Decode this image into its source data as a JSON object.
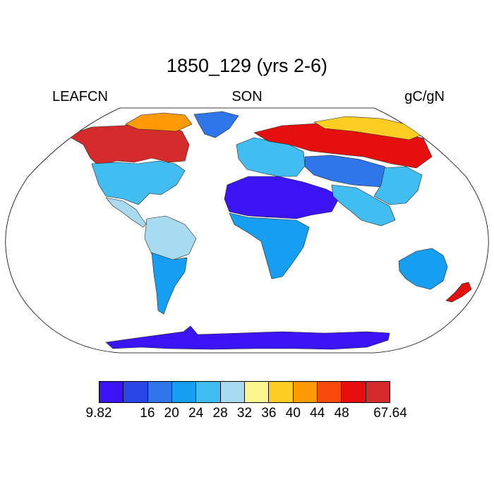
{
  "title": "1850_129 (yrs 2-6)",
  "left_label": "LEAFCN",
  "center_label": "SON",
  "right_label": "gC/gN",
  "colorbar": {
    "colors": [
      "#3a14f2",
      "#2a46e6",
      "#2f76ea",
      "#159ef2",
      "#42bdf2",
      "#a8daf0",
      "#fdf68e",
      "#fdcd24",
      "#fd9a06",
      "#f84a0c",
      "#e60f0f",
      "#d42c2c"
    ],
    "labels": [
      "9.82",
      "16",
      "20",
      "24",
      "28",
      "32",
      "36",
      "40",
      "44",
      "48",
      "67.64"
    ]
  },
  "map": {
    "projection": "robinson",
    "ocean_color": "#ffffff",
    "regions": [
      {
        "name": "north-america-boreal",
        "level": 11
      },
      {
        "name": "north-america-arctic",
        "level": 8
      },
      {
        "name": "north-america-temperate",
        "level": 4
      },
      {
        "name": "central-america",
        "level": 5
      },
      {
        "name": "amazon-basin",
        "level": 5
      },
      {
        "name": "southern-south-america",
        "level": 3
      },
      {
        "name": "greenland",
        "level": 2
      },
      {
        "name": "sahara-arabia",
        "level": 0
      },
      {
        "name": "sub-saharan-africa",
        "level": 3
      },
      {
        "name": "europe",
        "level": 4
      },
      {
        "name": "siberia-boreal",
        "level": 10
      },
      {
        "name": "siberia-arctic",
        "level": 7
      },
      {
        "name": "central-asia",
        "level": 2
      },
      {
        "name": "east-asia",
        "level": 4
      },
      {
        "name": "india-southeast-asia",
        "level": 4
      },
      {
        "name": "australia",
        "level": 3
      },
      {
        "name": "new-zealand",
        "level": 10
      },
      {
        "name": "antarctica",
        "level": 0
      }
    ]
  }
}
